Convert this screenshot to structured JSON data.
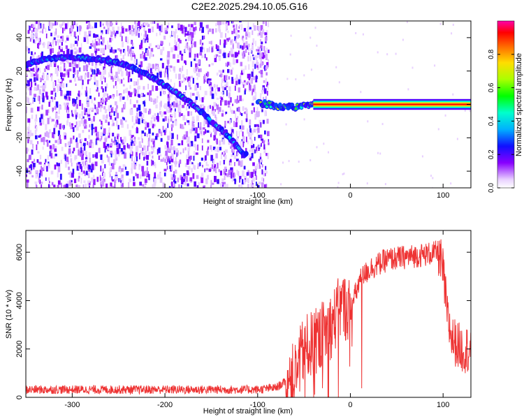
{
  "title": "C2E2.2025.294.10.05.G16",
  "chart_data": [
    {
      "type": "heatmap",
      "xlabel": "Height of straight line (km)",
      "ylabel": "Frequency (Hz)",
      "xlim": [
        -350,
        130
      ],
      "ylim": [
        -50,
        50
      ],
      "xticks": [
        -300,
        -200,
        -100,
        0,
        100
      ],
      "yticks": [
        -40,
        -20,
        0,
        20,
        40
      ],
      "colorbar": {
        "label": "Normalized spectral amplitude",
        "range": [
          0.0,
          1.0
        ],
        "ticks": [
          "0.0",
          "0.2",
          "0.4",
          "0.6",
          "0.8"
        ],
        "colormap": "rainbow (white→violet→blue→cyan→green→yellow→red→magenta)"
      },
      "features": [
        {
          "name": "doppler-curve",
          "x": [
            -350,
            -330,
            -310,
            -290,
            -270,
            -250,
            -230,
            -210,
            -190,
            -170,
            -150,
            -130,
            -115
          ],
          "y": [
            24,
            27,
            28,
            28,
            27,
            25,
            21,
            15,
            8,
            0,
            -10,
            -20,
            -30
          ]
        },
        {
          "name": "carrier-line",
          "x": [
            -100,
            -80,
            -60,
            -40,
            -20,
            0,
            50,
            100,
            130
          ],
          "y": [
            1,
            -1,
            -2,
            0,
            0,
            0,
            0,
            0,
            0
          ]
        }
      ]
    },
    {
      "type": "line",
      "xlabel": "Height of straight line (km)",
      "ylabel": "SNR (10 * v/v)",
      "xlim": [
        -350,
        130
      ],
      "ylim": [
        0,
        6900
      ],
      "xticks": [
        -300,
        -200,
        -100,
        0,
        100
      ],
      "yticks": [
        0,
        2000,
        4000,
        6000
      ],
      "series": [
        {
          "name": "SNR",
          "color": "#ee3333",
          "x": [
            -350,
            -100,
            -80,
            -60,
            -50,
            -40,
            -30,
            -20,
            -10,
            0,
            10,
            20,
            40,
            60,
            80,
            95,
            100,
            105,
            110,
            120,
            130
          ],
          "y": [
            320,
            320,
            400,
            900,
            2000,
            2200,
            2600,
            3000,
            3800,
            3600,
            4800,
            5300,
            5700,
            5800,
            5900,
            6000,
            5200,
            3200,
            2400,
            2000,
            2000
          ]
        }
      ]
    }
  ]
}
